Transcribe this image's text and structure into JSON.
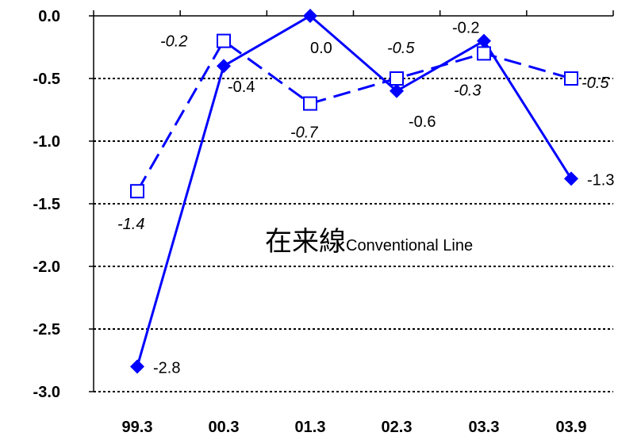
{
  "chart_data": {
    "type": "line",
    "categories": [
      "99.3",
      "00.3",
      "01.3",
      "02.3",
      "03.3",
      "03.9"
    ],
    "ylim": [
      -3.0,
      0.0
    ],
    "yticks": [
      "0.0",
      "-0.5",
      "-1.0",
      "-1.5",
      "-2.0",
      "-2.5",
      "-3.0"
    ],
    "grid": true,
    "series": [
      {
        "style": "solid",
        "marker": "diamond-filled",
        "color": "#0000ff",
        "values": [
          -2.8,
          -0.4,
          0.0,
          -0.6,
          -0.2,
          -1.3
        ],
        "labels": [
          "-2.8",
          "-0.4",
          "0.0",
          "-0.6",
          "-0.2",
          "-1.3"
        ]
      },
      {
        "style": "dashed",
        "marker": "square-open",
        "color": "#0000ff",
        "values": [
          -1.4,
          -0.2,
          -0.7,
          -0.5,
          -0.3,
          -0.5
        ],
        "labels": [
          "-1.4",
          "-0.2",
          "-0.7",
          "-0.5",
          "-0.3",
          "-0.5"
        ]
      }
    ],
    "annotation": {
      "main": "在来線",
      "sub": "Conventional Line"
    }
  }
}
